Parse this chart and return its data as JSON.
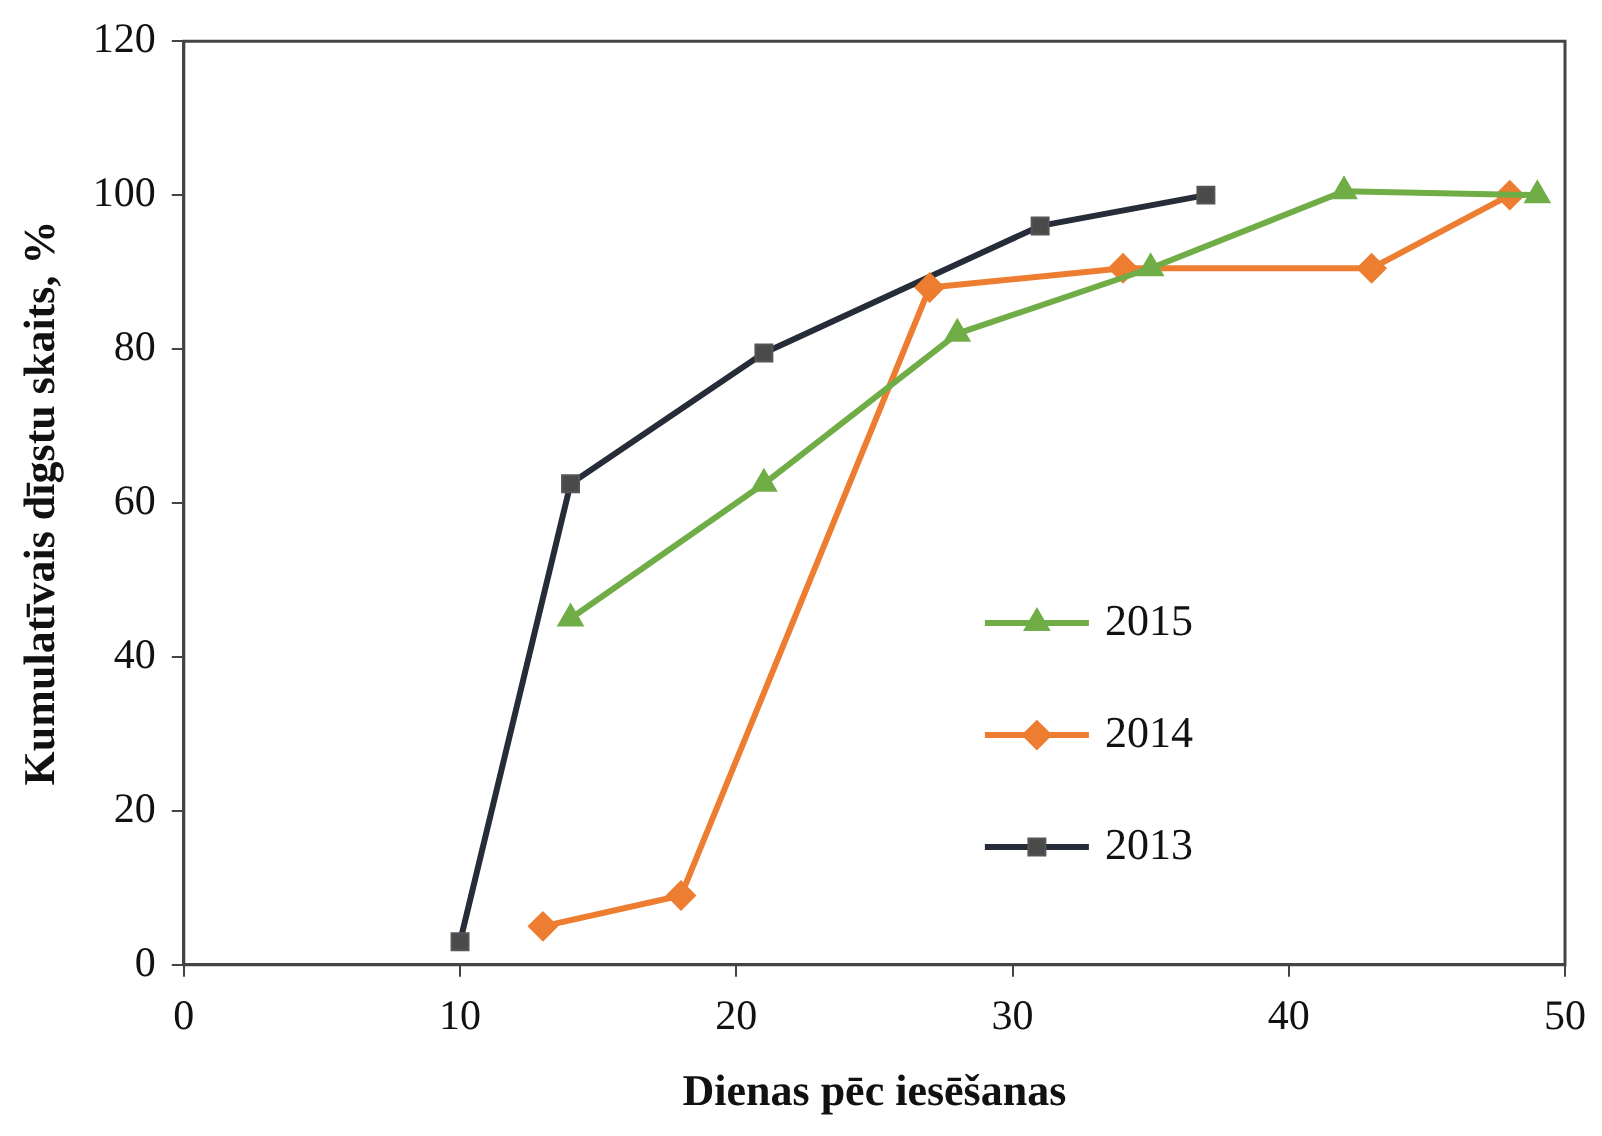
{
  "chart_data": {
    "type": "line",
    "xlabel": "Dienas pēc iesēšanas",
    "ylabel": "Kumulatīvais dīgstu skaits, %",
    "xlim": [
      0,
      50
    ],
    "xticks": [
      0,
      10,
      20,
      30,
      40,
      50
    ],
    "ylim": [
      0,
      120
    ],
    "yticks": [
      0,
      20,
      40,
      60,
      80,
      100,
      120
    ],
    "grid": false,
    "legend": "right",
    "series": [
      {
        "name": "2015",
        "color": "#70ad47",
        "marker": "triangle",
        "x": [
          14,
          21,
          28,
          35,
          42,
          49
        ],
        "values": [
          45,
          62.5,
          82,
          90.5,
          100.5,
          100
        ]
      },
      {
        "name": "2014",
        "color": "#ed7d31",
        "marker": "diamond",
        "x": [
          13,
          18,
          27,
          34,
          43,
          48
        ],
        "values": [
          5,
          9,
          88,
          90.5,
          90.5,
          100
        ]
      },
      {
        "name": "2013",
        "color": "#262d38",
        "marker": "square",
        "x": [
          10,
          14,
          21,
          31,
          37
        ],
        "values": [
          3,
          62.5,
          79.5,
          96,
          100
        ]
      }
    ]
  }
}
